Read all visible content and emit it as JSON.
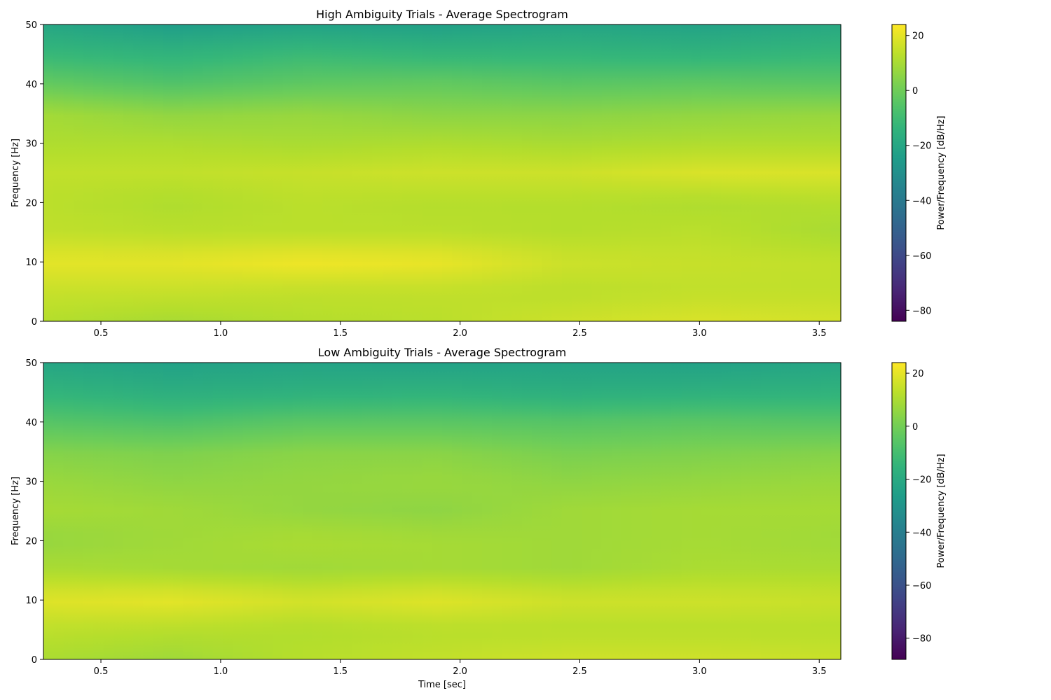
{
  "chart_data": [
    {
      "type": "heatmap",
      "title": "High Ambiguity Trials - Average Spectrogram",
      "xlabel": "",
      "ylabel": "Frequency [Hz]",
      "xlim": [
        0.26,
        3.59
      ],
      "ylim": [
        0,
        50
      ],
      "xticks": [
        0.5,
        1.0,
        1.5,
        2.0,
        2.5,
        3.0,
        3.5
      ],
      "xtick_labels": [
        "0.5",
        "1.0",
        "1.5",
        "2.0",
        "2.5",
        "3.0",
        "3.5"
      ],
      "yticks": [
        0,
        10,
        20,
        30,
        40,
        50
      ],
      "ytick_labels": [
        "0",
        "10",
        "20",
        "30",
        "40",
        "50"
      ],
      "colormap": "viridis",
      "colorbar": {
        "label": "Power/Frequency [dB/Hz]",
        "range": [
          -84,
          24
        ],
        "ticks": [
          20,
          0,
          -20,
          -40,
          -60,
          -80
        ],
        "tick_labels": [
          "20",
          "0",
          "−20",
          "−40",
          "−60",
          "−80"
        ]
      },
      "z_time": [
        0.26,
        0.8,
        1.35,
        1.9,
        2.45,
        3.0,
        3.59
      ],
      "z_freq": [
        0,
        5,
        10,
        15,
        20,
        25,
        30,
        35,
        40,
        45,
        50
      ],
      "z_db": [
        [
          12,
          10,
          12,
          13,
          16,
          18,
          17
        ],
        [
          15,
          15,
          14,
          14,
          13,
          14,
          14
        ],
        [
          20,
          20,
          22,
          21,
          16,
          15,
          14
        ],
        [
          14,
          13,
          13,
          13,
          12,
          13,
          10
        ],
        [
          13,
          11,
          13,
          12,
          12,
          11,
          12
        ],
        [
          14,
          14,
          15,
          16,
          16,
          18,
          18
        ],
        [
          11,
          11,
          10,
          11,
          10,
          11,
          11
        ],
        [
          9,
          6,
          7,
          5,
          5,
          6,
          7
        ],
        [
          -2,
          -6,
          -3,
          -2,
          -4,
          -3,
          -4
        ],
        [
          -12,
          -14,
          -11,
          -13,
          -13,
          -14,
          -12
        ],
        [
          -20,
          -24,
          -22,
          -23,
          -21,
          -22,
          -19
        ]
      ]
    },
    {
      "type": "heatmap",
      "title": "Low Ambiguity Trials - Average Spectrogram",
      "xlabel": "Time [sec]",
      "ylabel": "Frequency [Hz]",
      "xlim": [
        0.26,
        3.59
      ],
      "ylim": [
        0,
        50
      ],
      "xticks": [
        0.5,
        1.0,
        1.5,
        2.0,
        2.5,
        3.0,
        3.5
      ],
      "xtick_labels": [
        "0.5",
        "1.0",
        "1.5",
        "2.0",
        "2.5",
        "3.0",
        "3.5"
      ],
      "yticks": [
        0,
        10,
        20,
        30,
        40,
        50
      ],
      "ytick_labels": [
        "0",
        "10",
        "20",
        "30",
        "40",
        "50"
      ],
      "colormap": "viridis",
      "colorbar": {
        "label": "Power/Frequency [dB/Hz]",
        "range": [
          -88,
          24
        ],
        "ticks": [
          20,
          0,
          -20,
          -40,
          -60,
          -80
        ],
        "tick_labels": [
          "20",
          "0",
          "−20",
          "−40",
          "−60",
          "−80"
        ]
      },
      "z_time": [
        0.26,
        0.8,
        1.35,
        1.9,
        2.45,
        3.0,
        3.59
      ],
      "z_freq": [
        0,
        5,
        10,
        15,
        20,
        25,
        30,
        35,
        40,
        45,
        50
      ],
      "z_db": [
        [
          10,
          8,
          12,
          14,
          16,
          16,
          15
        ],
        [
          13,
          12,
          11,
          12,
          12,
          12,
          12
        ],
        [
          19,
          20,
          17,
          19,
          16,
          16,
          15
        ],
        [
          10,
          9,
          8,
          9,
          8,
          10,
          10
        ],
        [
          6,
          8,
          10,
          9,
          8,
          9,
          8
        ],
        [
          9,
          8,
          6,
          5,
          8,
          9,
          9
        ],
        [
          7,
          5,
          6,
          7,
          5,
          6,
          7
        ],
        [
          3,
          2,
          4,
          4,
          1,
          2,
          3
        ],
        [
          -6,
          -8,
          -5,
          -5,
          -6,
          -5,
          -6
        ],
        [
          -15,
          -18,
          -17,
          -16,
          -18,
          -17,
          -16
        ],
        [
          -22,
          -24,
          -23,
          -24,
          -23,
          -24,
          -22
        ]
      ]
    }
  ]
}
